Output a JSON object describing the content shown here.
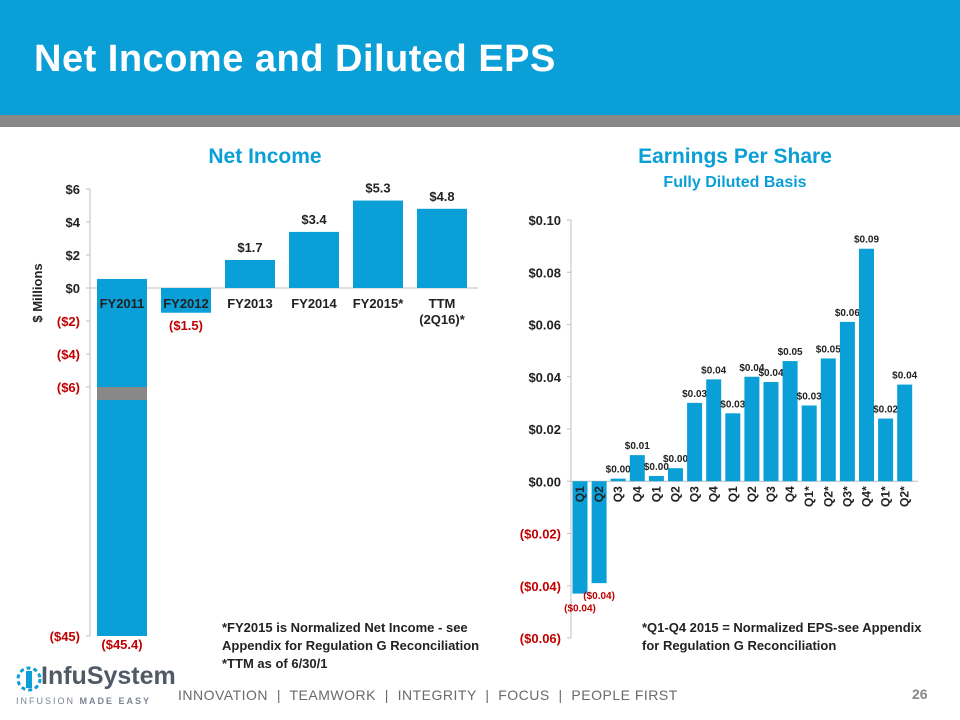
{
  "slide": {
    "title": "Net Income and Diluted EPS",
    "footer": "INNOVATION  |  TEAMWORK  |  INTEGRITY  |  FOCUS  |  PEOPLE FIRST",
    "page_number": "26",
    "logo_text": "InfuSystem",
    "logo_tagline_a": "INFUSION ",
    "logo_tagline_b": "MADE EASY",
    "colors": {
      "accent": "#0b9fd8",
      "band": "#888888",
      "negative": "#c00000"
    }
  },
  "chart_data": [
    {
      "type": "bar",
      "title": "Net Income",
      "ylabel": "$ Millions",
      "categories": [
        "FY2011",
        "FY2012",
        "FY2013",
        "FY2014",
        "FY2015*",
        "TTM (2Q16)*"
      ],
      "values": [
        -45.4,
        -1.5,
        1.7,
        3.4,
        5.3,
        4.8
      ],
      "data_labels": [
        "($45.4)",
        "($1.5)",
        "$1.7",
        "$3.4",
        "$5.3",
        "$4.8"
      ],
      "axis_break": {
        "after_tick": "($6)",
        "final_tick": "($45)",
        "final_value": -45
      },
      "yticks": [
        6,
        4,
        2,
        0,
        -2,
        -4,
        -6,
        -45
      ],
      "ytick_labels": [
        "$6",
        "$4",
        "$2",
        "$0",
        "($2)",
        "($4)",
        "($6)",
        "($45)"
      ],
      "ylim": [
        -45,
        6
      ],
      "grid": false,
      "notes": [
        "*FY2015 is Normalized Net Income - see",
        "Appendix for Regulation G Reconciliation",
        "*TTM as of 6/30/1"
      ]
    },
    {
      "type": "bar",
      "title": "Earnings Per Share",
      "subtitle": "Fully Diluted Basis",
      "categories": [
        "Q1",
        "Q2",
        "Q3",
        "Q4",
        "Q1",
        "Q2",
        "Q3",
        "Q4",
        "Q1",
        "Q2",
        "Q3",
        "Q4",
        "Q1*",
        "Q2*",
        "Q3*",
        "Q4*",
        "Q1*",
        "Q2*"
      ],
      "values": [
        -0.043,
        -0.039,
        0.001,
        0.01,
        0.002,
        0.005,
        0.03,
        0.039,
        0.026,
        0.04,
        0.038,
        0.046,
        0.029,
        0.047,
        0.061,
        0.089,
        0.024,
        0.037
      ],
      "data_labels": [
        "($0.04)",
        "($0.04)",
        "$0.00",
        "$0.01",
        "$0.00",
        "$0.00",
        "$0.03",
        "$0.04",
        "$0.03",
        "$0.04",
        "$0.04",
        "$0.05",
        "$0.03",
        "$0.05",
        "$0.06",
        "$0.09",
        "$0.02",
        "$0.04"
      ],
      "yticks": [
        0.1,
        0.08,
        0.06,
        0.04,
        0.02,
        0.0,
        -0.02,
        -0.04,
        -0.06
      ],
      "ytick_labels": [
        "$0.10",
        "$0.08",
        "$0.06",
        "$0.04",
        "$0.02",
        "$0.00",
        "($0.02)",
        "($0.04)",
        "($0.06)"
      ],
      "ylim": [
        -0.06,
        0.1
      ],
      "grid": false,
      "notes": [
        "*Q1-Q4 2015 = Normalized EPS-see Appendix",
        "for Regulation G Reconciliation"
      ]
    }
  ]
}
